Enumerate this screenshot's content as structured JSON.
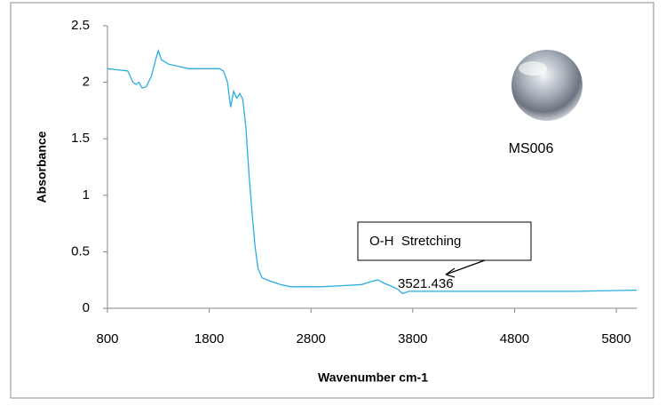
{
  "chart_data": {
    "type": "line",
    "x_label": "Wavenumber cm-1",
    "y_label": "Absorbance",
    "x": [
      800,
      900,
      1000,
      1050,
      1080,
      1110,
      1140,
      1180,
      1230,
      1280,
      1300,
      1330,
      1400,
      1500,
      1600,
      1700,
      1800,
      1900,
      1940,
      1980,
      2010,
      2040,
      2070,
      2100,
      2130,
      2160,
      2190,
      2220,
      2250,
      2280,
      2320,
      2400,
      2500,
      2600,
      2700,
      2900,
      3100,
      3300,
      3400,
      3460,
      3520,
      3580,
      3650,
      3700,
      3760,
      3900,
      4200,
      4800,
      5400,
      6000
    ],
    "values": [
      2.12,
      2.11,
      2.1,
      2.0,
      1.98,
      2.0,
      1.95,
      1.96,
      2.05,
      2.22,
      2.28,
      2.2,
      2.16,
      2.14,
      2.12,
      2.12,
      2.12,
      2.12,
      2.1,
      2.0,
      1.78,
      1.92,
      1.86,
      1.9,
      1.85,
      1.6,
      1.2,
      0.85,
      0.55,
      0.35,
      0.27,
      0.24,
      0.21,
      0.19,
      0.19,
      0.19,
      0.2,
      0.21,
      0.24,
      0.25,
      0.22,
      0.2,
      0.17,
      0.13,
      0.15,
      0.15,
      0.15,
      0.15,
      0.15,
      0.16
    ],
    "color": "#29aee0",
    "xlim": [
      800,
      6000
    ],
    "ylim": [
      0,
      2.5
    ],
    "xticks": [
      800,
      1800,
      2800,
      3800,
      4800,
      5800
    ],
    "yticks": [
      0,
      0.5,
      1,
      1.5,
      2,
      2.5
    ],
    "grid": false,
    "annotations": [
      {
        "text": "O-H  Stretching"
      },
      {
        "text": "3521.436"
      },
      {
        "text": "MS006"
      }
    ]
  }
}
